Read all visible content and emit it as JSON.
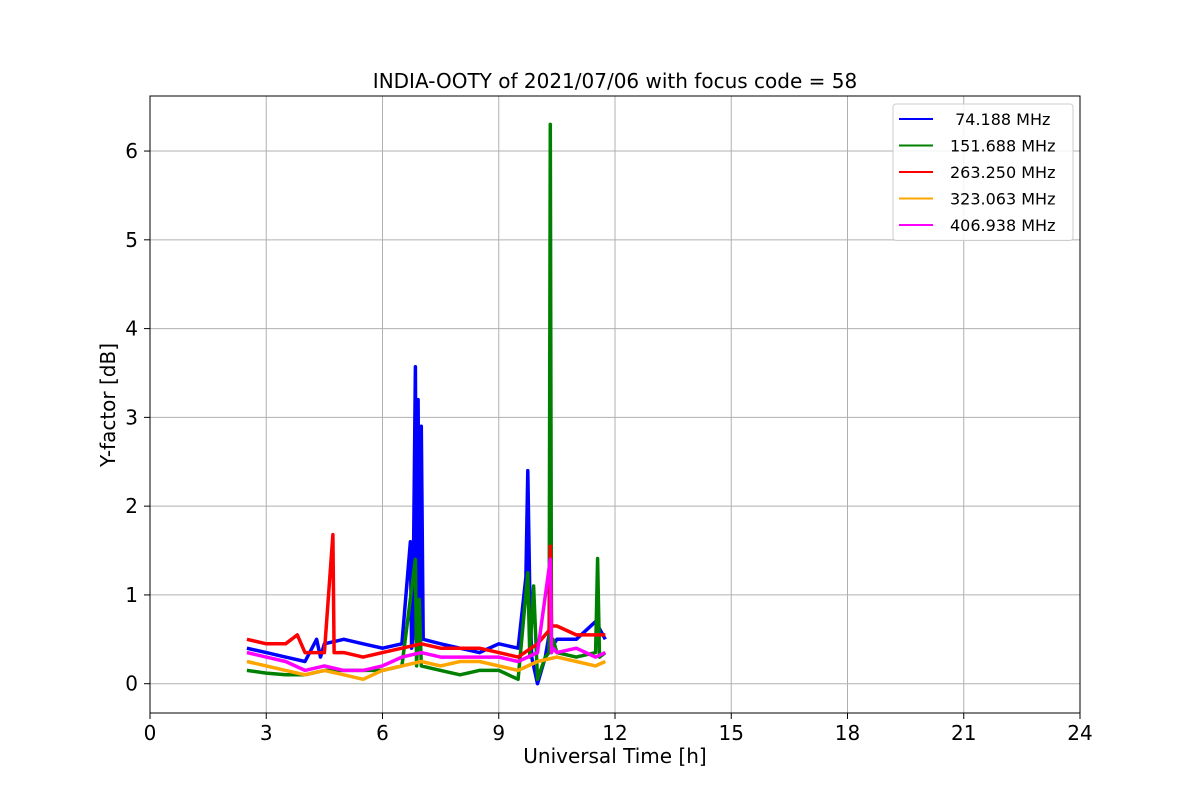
{
  "chart_data": {
    "type": "line",
    "title": "INDIA-OOTY of 2021/07/06 with focus code = 58",
    "xlabel": "Universal Time [h]",
    "ylabel": "Y-factor [dB]",
    "xlim": [
      0,
      24
    ],
    "ylim": [
      -0.33,
      6.62
    ],
    "x_ticks": [
      0,
      3,
      6,
      9,
      12,
      15,
      18,
      21,
      24
    ],
    "y_ticks": [
      0,
      1,
      2,
      3,
      4,
      5,
      6
    ],
    "grid": true,
    "legend_position": "top-right",
    "series": [
      {
        "name": " 74.188 MHz",
        "color": "#0000ff",
        "x": [
          2.5,
          3.0,
          3.5,
          4.0,
          4.3,
          4.4,
          4.5,
          5.0,
          5.5,
          6.0,
          6.5,
          6.72,
          6.75,
          6.78,
          6.85,
          6.88,
          6.92,
          6.95,
          7.0,
          7.05,
          7.5,
          8.0,
          8.5,
          9.0,
          9.5,
          9.7,
          9.75,
          9.8,
          9.85,
          10.0,
          10.2,
          10.3,
          10.35,
          10.5,
          11.0,
          11.5,
          11.75
        ],
        "y": [
          0.4,
          0.35,
          0.3,
          0.25,
          0.5,
          0.3,
          0.45,
          0.5,
          0.45,
          0.4,
          0.45,
          1.6,
          0.4,
          0.5,
          3.57,
          0.6,
          3.2,
          0.5,
          2.9,
          0.5,
          0.45,
          0.4,
          0.35,
          0.45,
          0.4,
          1.2,
          2.4,
          1.0,
          0.3,
          0.0,
          0.3,
          0.55,
          0.4,
          0.5,
          0.5,
          0.7,
          0.5
        ]
      },
      {
        "name": "151.688 MHz",
        "color": "#008000",
        "x": [
          2.5,
          3.0,
          3.5,
          4.0,
          4.5,
          5.0,
          5.5,
          6.0,
          6.5,
          6.85,
          6.88,
          6.95,
          7.0,
          7.5,
          8.0,
          8.5,
          9.0,
          9.5,
          9.75,
          9.8,
          9.9,
          10.0,
          10.2,
          10.3,
          10.33,
          10.36,
          10.4,
          10.5,
          11.0,
          11.5,
          11.55,
          11.6,
          11.75
        ],
        "y": [
          0.15,
          0.12,
          0.1,
          0.1,
          0.15,
          0.15,
          0.15,
          0.15,
          0.2,
          1.4,
          0.2,
          0.95,
          0.2,
          0.15,
          0.1,
          0.15,
          0.15,
          0.05,
          1.25,
          0.3,
          1.1,
          0.05,
          0.3,
          0.35,
          6.3,
          0.35,
          0.5,
          0.35,
          0.3,
          0.35,
          1.41,
          0.3,
          0.35
        ]
      },
      {
        "name": "263.250 MHz",
        "color": "#ff0000",
        "x": [
          2.5,
          3.0,
          3.5,
          3.8,
          4.0,
          4.5,
          4.72,
          4.75,
          4.8,
          5.0,
          5.5,
          6.0,
          6.5,
          7.0,
          7.5,
          8.0,
          8.5,
          9.0,
          9.5,
          10.0,
          10.3,
          10.33,
          10.36,
          10.5,
          11.0,
          11.5,
          11.75
        ],
        "y": [
          0.5,
          0.45,
          0.45,
          0.55,
          0.35,
          0.35,
          1.68,
          0.35,
          0.35,
          0.35,
          0.3,
          0.35,
          0.4,
          0.45,
          0.4,
          0.4,
          0.4,
          0.35,
          0.3,
          0.45,
          0.6,
          1.55,
          0.65,
          0.65,
          0.55,
          0.55,
          0.55
        ]
      },
      {
        "name": "323.063 MHz",
        "color": "#ffa500",
        "x": [
          2.5,
          3.0,
          3.5,
          4.0,
          4.5,
          5.0,
          5.5,
          6.0,
          6.5,
          7.0,
          7.5,
          8.0,
          8.5,
          9.0,
          9.5,
          10.0,
          10.5,
          11.0,
          11.5,
          11.75
        ],
        "y": [
          0.25,
          0.2,
          0.15,
          0.1,
          0.15,
          0.1,
          0.05,
          0.15,
          0.2,
          0.25,
          0.2,
          0.25,
          0.25,
          0.2,
          0.15,
          0.25,
          0.3,
          0.25,
          0.2,
          0.25
        ]
      },
      {
        "name": "406.938 MHz",
        "color": "#ff00ff",
        "x": [
          2.5,
          3.0,
          3.5,
          4.0,
          4.5,
          5.0,
          5.5,
          6.0,
          6.5,
          7.0,
          7.5,
          8.0,
          8.5,
          9.0,
          9.5,
          10.0,
          10.33,
          10.36,
          10.4,
          10.5,
          11.0,
          11.5,
          11.75
        ],
        "y": [
          0.35,
          0.3,
          0.25,
          0.15,
          0.2,
          0.15,
          0.15,
          0.2,
          0.3,
          0.35,
          0.3,
          0.3,
          0.3,
          0.3,
          0.25,
          0.35,
          1.4,
          0.35,
          0.4,
          0.35,
          0.4,
          0.3,
          0.35
        ]
      }
    ]
  }
}
